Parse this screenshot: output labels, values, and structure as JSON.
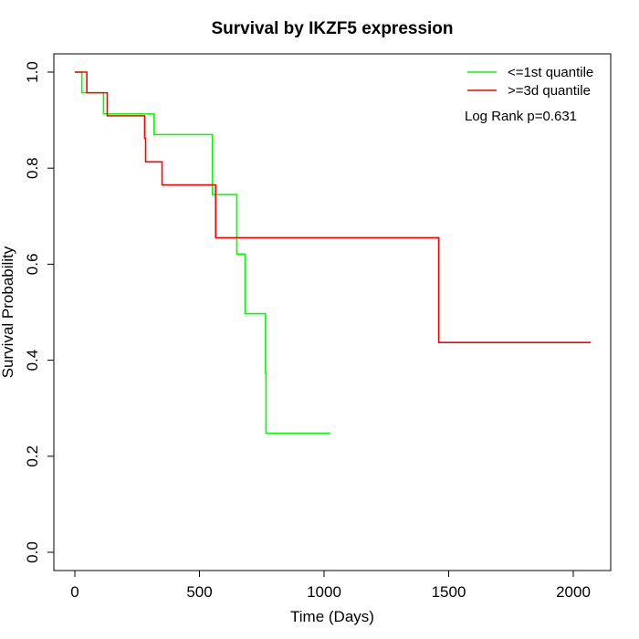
{
  "chart_data": {
    "type": "line",
    "title": "Survival by IKZF5 expression",
    "xlabel": "Time (Days)",
    "ylabel": "Survival Probability",
    "xlim": [
      0,
      2070
    ],
    "ylim": [
      0,
      1
    ],
    "x_ticks": [
      0,
      500,
      1000,
      1500,
      2000
    ],
    "y_ticks": [
      0.0,
      0.2,
      0.4,
      0.6,
      0.8,
      1.0
    ],
    "x_tick_labels": [
      "0",
      "500",
      "1000",
      "1500",
      "2000"
    ],
    "y_tick_labels": [
      "0.0",
      "0.2",
      "0.4",
      "0.6",
      "0.8",
      "1.0"
    ],
    "grid": false,
    "legend_position": "top-right",
    "annotation": "Log Rank p=0.631",
    "series": [
      {
        "name": "<=1st quantile",
        "color": "#00ff00",
        "step_points": [
          [
            0,
            1.0
          ],
          [
            28,
            1.0
          ],
          [
            28,
            0.957
          ],
          [
            115,
            0.957
          ],
          [
            115,
            0.913
          ],
          [
            318,
            0.913
          ],
          [
            318,
            0.87
          ],
          [
            552,
            0.87
          ],
          [
            552,
            0.745
          ],
          [
            650,
            0.745
          ],
          [
            650,
            0.621
          ],
          [
            683,
            0.621
          ],
          [
            683,
            0.497
          ],
          [
            765,
            0.497
          ],
          [
            765,
            0.373
          ],
          [
            767,
            0.373
          ],
          [
            767,
            0.248
          ],
          [
            1025,
            0.248
          ]
        ]
      },
      {
        "name": ">=3d quantile",
        "color": "#ff0000",
        "step_points": [
          [
            0,
            1.0
          ],
          [
            48,
            1.0
          ],
          [
            48,
            0.957
          ],
          [
            130,
            0.957
          ],
          [
            130,
            0.909
          ],
          [
            280,
            0.909
          ],
          [
            280,
            0.862
          ],
          [
            284,
            0.862
          ],
          [
            284,
            0.813
          ],
          [
            350,
            0.813
          ],
          [
            350,
            0.765
          ],
          [
            565,
            0.765
          ],
          [
            565,
            0.655
          ],
          [
            1460,
            0.655
          ],
          [
            1460,
            0.437
          ],
          [
            2070,
            0.437
          ]
        ]
      }
    ]
  }
}
